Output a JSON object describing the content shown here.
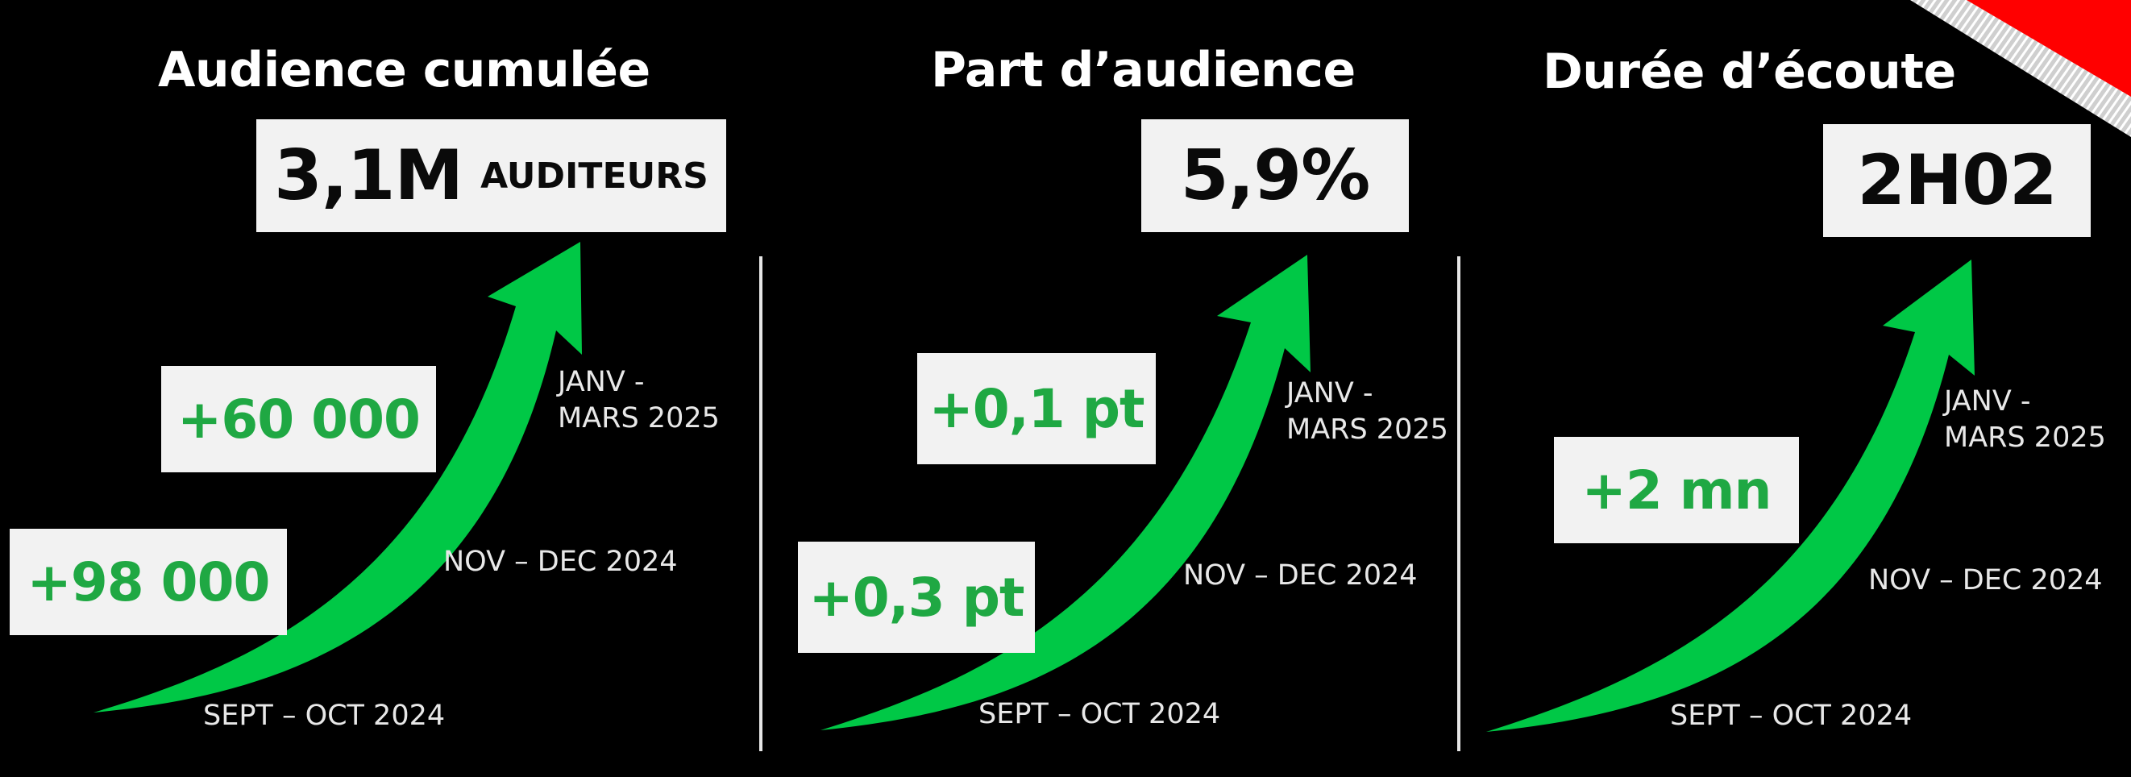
{
  "colors": {
    "background": "#000000",
    "accent_green": "#1fa843",
    "arrow_green": "#00c846",
    "box_bg": "#f2f2f2"
  },
  "panels": [
    {
      "title": "Audience cumulée",
      "value": "3,1M",
      "unit": "AUDITEURS",
      "gains": [
        "+98 000",
        "+60 000"
      ],
      "periods": {
        "p1": "SEPT – OCT 2024",
        "p2": "NOV – DEC 2024",
        "p3a": "JANV -",
        "p3b": "MARS 2025"
      }
    },
    {
      "title": "Part d’audience",
      "value": "5,9%",
      "unit": "",
      "gains": [
        "+0,3 pt",
        "+0,1 pt"
      ],
      "periods": {
        "p1": "SEPT – OCT 2024",
        "p2": "NOV – DEC 2024",
        "p3a": "JANV -",
        "p3b": "MARS 2025"
      }
    },
    {
      "title": "Durée d’écoute",
      "value": "2H02",
      "unit": "",
      "gains": [
        "+2 mn"
      ],
      "periods": {
        "p1": "SEPT – OCT 2024",
        "p2": "NOV – DEC 2024",
        "p3a": "JANV -",
        "p3b": "MARS 2025"
      }
    }
  ]
}
